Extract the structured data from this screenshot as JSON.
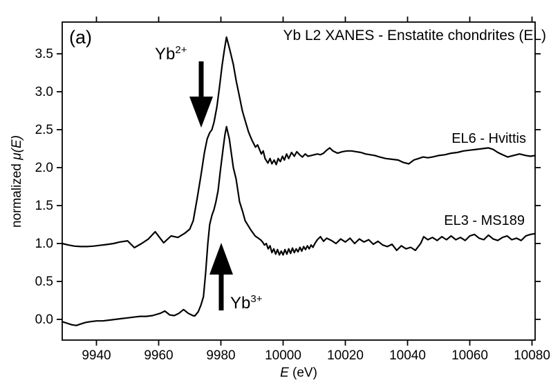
{
  "figure": {
    "panel_label": "(a)",
    "background": "#ffffff",
    "line_color": "#000000",
    "text_color": "#000000"
  },
  "chart_data": {
    "type": "line",
    "title": "Yb L2 XANES - Enstatite chondrites (EL)",
    "xlabel_italic": "E",
    "xlabel_unit": " (eV)",
    "ylabel_prefix": "normalized ",
    "ylabel_math": "μ(E)",
    "xlim": [
      9929,
      10081
    ],
    "ylim": [
      -0.273,
      3.918
    ],
    "x_ticks": [
      9940,
      9960,
      9980,
      10000,
      10020,
      10040,
      10060,
      10080
    ],
    "y_ticks": [
      0.0,
      0.5,
      1.0,
      1.5,
      2.0,
      2.5,
      3.0,
      3.5
    ],
    "grid": false,
    "legend_position": "inline-right",
    "annotations": {
      "yb2": {
        "text": "Yb",
        "sup": "2+",
        "arrow_direction": "down",
        "arrow_points_at_eV": 9973.5
      },
      "yb3": {
        "text": "Yb",
        "sup": "3+",
        "arrow_direction": "up",
        "arrow_points_at_eV": 9980
      }
    },
    "series": [
      {
        "name": "EL6 - Hvittis",
        "color": "#000000",
        "x": [
          9929,
          9931,
          9933,
          9935,
          9937,
          9939,
          9941,
          9943,
          9945.5,
          9947.5,
          9950,
          9952.2,
          9954.5,
          9956.7,
          9958.9,
          9961.6,
          9964,
          9966.2,
          9968.4,
          9970,
          9971.1,
          9972.4,
          9973.6,
          9974.7,
          9975.6,
          9976.4,
          9977.1,
          9977.8,
          9978.7,
          9979.5,
          9980.4,
          9981.1,
          9981.8,
          9982.9,
          9984,
          9984.9,
          9986,
          9986.9,
          9987.8,
          9988.9,
          9990,
          9991.1,
          9991.8,
          9992.4,
          9993,
          9993.6,
          9994.2,
          9995.1,
          9995.8,
          9996.4,
          9997.1,
          9997.8,
          9998.4,
          9999.1,
          9999.8,
          10000.4,
          10001.1,
          10001.8,
          10002.7,
          10003.6,
          10004.4,
          10005.3,
          10006.2,
          10007.1,
          10008,
          10009,
          10010,
          10011,
          10012,
          10013,
          10014,
          10015,
          10016,
          10017.5,
          10019,
          10020.5,
          10022,
          10023.5,
          10025,
          10026.5,
          10028,
          10029.5,
          10031,
          10033,
          10035,
          10037,
          10038.5,
          10040.4,
          10042,
          10043.5,
          10045,
          10046.5,
          10048,
          10050,
          10052,
          10054,
          10056,
          10058,
          10060,
          10062,
          10064,
          10066,
          10067.5,
          10069,
          10070.5,
          10072.2,
          10074,
          10076,
          10078,
          10079.5,
          10081
        ],
        "y": [
          1.0,
          0.98,
          0.965,
          0.96,
          0.96,
          0.965,
          0.975,
          0.985,
          1.0,
          1.02,
          1.035,
          0.945,
          1.0,
          1.06,
          1.155,
          1.01,
          1.1,
          1.08,
          1.135,
          1.19,
          1.3,
          1.6,
          1.9,
          2.2,
          2.38,
          2.46,
          2.5,
          2.6,
          2.8,
          3.05,
          3.35,
          3.55,
          3.72,
          3.55,
          3.36,
          3.15,
          2.93,
          2.75,
          2.62,
          2.47,
          2.36,
          2.27,
          2.3,
          2.24,
          2.18,
          2.22,
          2.12,
          2.06,
          2.12,
          2.05,
          2.1,
          2.04,
          2.12,
          2.08,
          2.15,
          2.1,
          2.18,
          2.12,
          2.2,
          2.15,
          2.21,
          2.17,
          2.14,
          2.18,
          2.15,
          2.16,
          2.17,
          2.18,
          2.17,
          2.19,
          2.23,
          2.26,
          2.22,
          2.19,
          2.21,
          2.22,
          2.22,
          2.21,
          2.2,
          2.18,
          2.17,
          2.16,
          2.14,
          2.12,
          2.11,
          2.1,
          2.07,
          2.05,
          2.1,
          2.12,
          2.14,
          2.13,
          2.14,
          2.16,
          2.17,
          2.19,
          2.2,
          2.22,
          2.23,
          2.24,
          2.25,
          2.26,
          2.24,
          2.2,
          2.17,
          2.14,
          2.16,
          2.18,
          2.16,
          2.15,
          2.16
        ]
      },
      {
        "name": "EL3 - MS189",
        "color": "#000000",
        "x": [
          9929,
          9930.5,
          9932,
          9933.5,
          9935,
          9936.5,
          9938,
          9940,
          9942,
          9944,
          9946,
          9948,
          9950,
          9952,
          9954,
          9956,
          9958,
          9960.5,
          9962,
          9963.5,
          9965,
          9966.5,
          9968,
          9969.5,
          9971,
          9971.6,
          9972.7,
          9973.6,
          9974.4,
          9975.1,
          9975.8,
          9976.4,
          9977.1,
          9977.8,
          9978.4,
          9979.1,
          9979.8,
          9980.7,
          9981.3,
          9981.8,
          9982.7,
          9983.3,
          9984,
          9984.9,
          9986,
          9987,
          9987.8,
          9989,
          9989.6,
          9991,
          9992.7,
          9993.4,
          9994,
          9994.6,
          9995.2,
          9995.8,
          9996.4,
          9997,
          9997.6,
          9998.2,
          9998.8,
          9999.4,
          10000,
          10000.6,
          10001.2,
          10001.8,
          10002.4,
          10003,
          10003.6,
          10004.2,
          10004.8,
          10005.4,
          10006,
          10006.6,
          10007.2,
          10007.8,
          10008.4,
          10009,
          10009.6,
          10010.2,
          10011,
          10012,
          10013,
          10014,
          10015.5,
          10017,
          10018.5,
          10020,
          10021.5,
          10023,
          10024.5,
          10026,
          10027.5,
          10029,
          10030.5,
          10032,
          10033.5,
          10035,
          10036.5,
          10038,
          10039.5,
          10041,
          10042.5,
          10044.2,
          10045.2,
          10046.5,
          10048,
          10049.5,
          10051,
          10052.5,
          10054,
          10055.5,
          10057,
          10058.5,
          10060,
          10061.5,
          10063,
          10064.5,
          10066,
          10067.5,
          10069,
          10070.5,
          10072,
          10073.5,
          10075,
          10076.5,
          10078,
          10079.5,
          10081
        ],
        "y": [
          -0.03,
          -0.05,
          -0.07,
          -0.08,
          -0.06,
          -0.04,
          -0.03,
          -0.02,
          -0.02,
          -0.01,
          0.0,
          0.01,
          0.02,
          0.03,
          0.04,
          0.04,
          0.05,
          0.08,
          0.11,
          0.06,
          0.05,
          0.08,
          0.13,
          0.08,
          0.05,
          0.045,
          0.1,
          0.19,
          0.3,
          0.62,
          1.0,
          1.25,
          1.37,
          1.45,
          1.55,
          1.7,
          1.95,
          2.25,
          2.43,
          2.54,
          2.38,
          2.21,
          2.0,
          1.85,
          1.55,
          1.42,
          1.3,
          1.22,
          1.18,
          1.1,
          1.05,
          1.02,
          0.98,
          1.0,
          0.93,
          0.97,
          0.88,
          0.93,
          0.86,
          0.92,
          0.85,
          0.9,
          0.85,
          0.92,
          0.86,
          0.93,
          0.87,
          0.94,
          0.88,
          0.93,
          0.89,
          0.95,
          0.9,
          0.96,
          0.92,
          0.97,
          0.93,
          0.98,
          0.95,
          1.0,
          1.05,
          1.09,
          1.03,
          1.07,
          1.04,
          1.0,
          1.06,
          1.02,
          1.07,
          1.0,
          1.06,
          1.02,
          1.05,
          0.99,
          1.03,
          0.98,
          0.96,
          0.99,
          0.91,
          0.97,
          0.93,
          0.95,
          0.91,
          1.0,
          1.09,
          1.05,
          1.08,
          1.04,
          1.09,
          1.05,
          1.1,
          1.05,
          1.08,
          1.04,
          1.1,
          1.12,
          1.07,
          1.05,
          1.11,
          1.06,
          1.04,
          1.08,
          1.1,
          1.05,
          1.07,
          1.04,
          1.1,
          1.12,
          1.13
        ]
      }
    ]
  }
}
